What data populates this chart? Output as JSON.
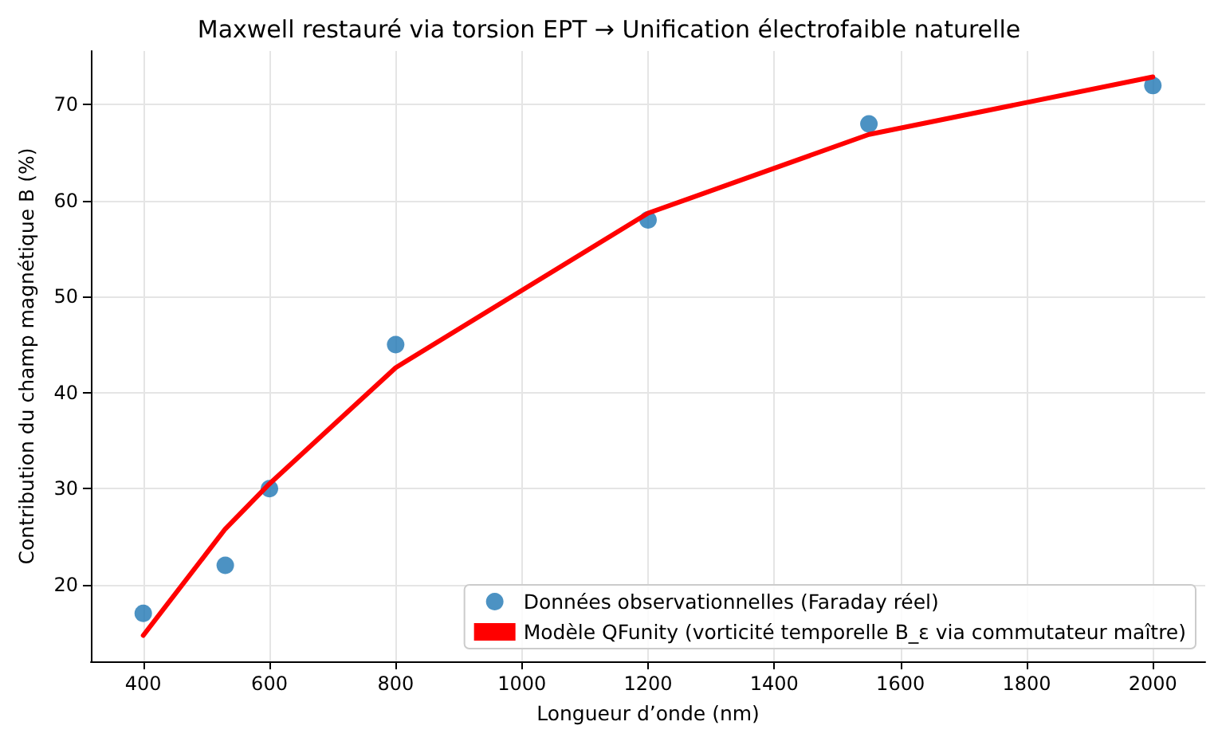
{
  "chart_data": {
    "type": "scatter",
    "title": "Maxwell restauré via torsion EPT → Unification électrofaible naturelle",
    "xlabel": "Longueur d’onde (nm)",
    "ylabel": "Contribution du champ magnétique B (%)",
    "x": [
      400,
      530,
      600,
      800,
      1200,
      1550,
      2000
    ],
    "series": [
      {
        "name": "Données observationnelles (Faraday réel)",
        "color": "#1f77b4",
        "marker": "circle",
        "values": [
          17,
          22,
          30,
          45,
          58,
          68,
          72
        ]
      },
      {
        "name": "Modèle QFunity (vorticité temporelle B_ε via commutateur maître)",
        "type": "line",
        "color": "#ff0000",
        "marker": "none",
        "line_style": "solid",
        "values": [
          14.7,
          25.8,
          30.5,
          42.6,
          58.7,
          66.9,
          72.9
        ]
      }
    ],
    "xlim": [
      317,
      2083
    ],
    "xticks": [
      400,
      600,
      800,
      1000,
      1200,
      1400,
      1600,
      1800,
      2000
    ],
    "ylim": [
      12,
      75.6
    ],
    "yticks": [
      20,
      30,
      40,
      50,
      60,
      70
    ],
    "grid": true,
    "legend": "bottom right"
  }
}
